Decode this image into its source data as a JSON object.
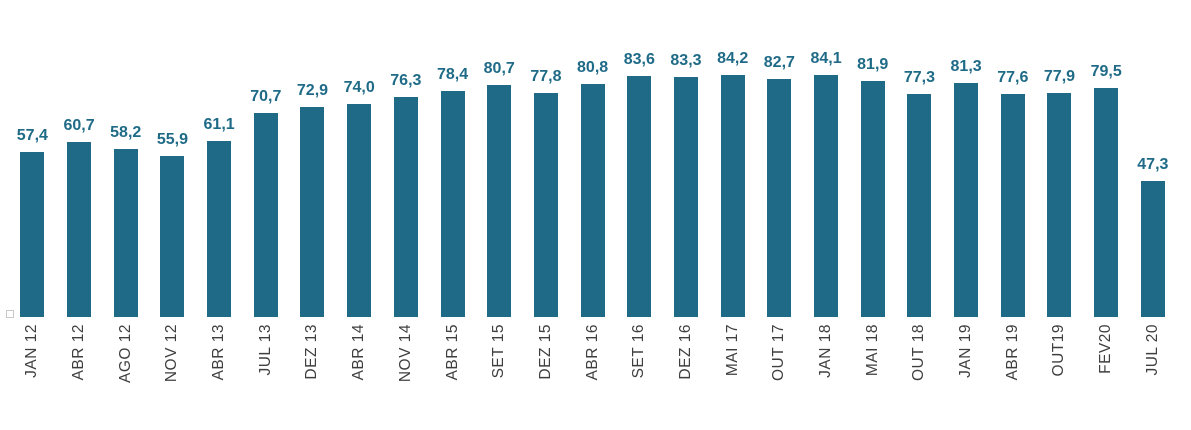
{
  "chart_data": {
    "type": "bar",
    "title": "",
    "xlabel": "",
    "ylabel": "",
    "categories": [
      "JAN 12",
      "ABR 12",
      "AGO 12",
      "NOV 12",
      "ABR 13",
      "JUL 13",
      "DEZ 13",
      "ABR 14",
      "NOV 14",
      "ABR 15",
      "SET 15",
      "DEZ 15",
      "ABR 16",
      "SET 16",
      "DEZ 16",
      "MAI 17",
      "OUT 17",
      "JAN 18",
      "MAI 18",
      "OUT 18",
      "JAN 19",
      "ABR 19",
      "OUT19",
      "FEV20",
      "JUL 20"
    ],
    "values": [
      57.4,
      60.7,
      58.2,
      55.9,
      61.1,
      70.7,
      72.9,
      74.0,
      76.3,
      78.4,
      80.7,
      77.8,
      80.8,
      83.6,
      83.3,
      84.2,
      82.7,
      84.1,
      81.9,
      77.3,
      81.3,
      77.6,
      77.9,
      79.5,
      47.3
    ],
    "value_labels": [
      "57,4",
      "60,7",
      "58,2",
      "55,9",
      "61,1",
      "70,7",
      "72,9",
      "74,0",
      "76,3",
      "78,4",
      "80,7",
      "77,8",
      "80,8",
      "83,6",
      "83,3",
      "84,2",
      "82,7",
      "84,1",
      "81,9",
      "77,3",
      "81,3",
      "77,6",
      "77,9",
      "79,5",
      "47,3"
    ],
    "ylim": [
      0,
      90
    ],
    "grid": false,
    "legend": "none",
    "bar_color": "#1f6b87",
    "value_label_color": "#1f6b87",
    "axis_label_color": "#3f3f3f"
  }
}
